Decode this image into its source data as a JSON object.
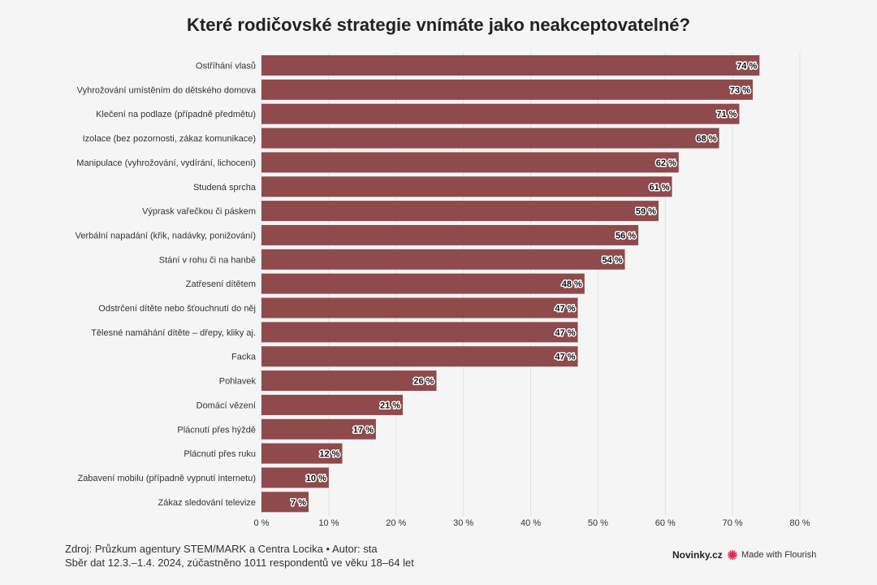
{
  "title": "Které rodičovské strategie vnímáte jako neakceptovatelné?",
  "chart_data": {
    "type": "bar",
    "orientation": "horizontal",
    "categories": [
      "Ostříhání vlasů",
      "Vyhrožování umístěním do dětského domova",
      "Klečení na podlaze (případně předmětu)",
      "Izolace (bez pozornosti, zákaz komunikace)",
      "Manipulace (vyhrožování, vydírání, lichocení)",
      "Studená sprcha",
      "Výprask vařečkou či páskem",
      "Verbální napadání (křik, nadávky, ponižování)",
      "Stání v rohu či na hanbě",
      "Zatřesení dítětem",
      "Odstrčení dítěte nebo šťouchnutí do něj",
      "Tělesné namáhání dítěte – dřepy, kliky aj.",
      "Facka",
      "Pohlavek",
      "Domácí vězení",
      "Plácnutí přes hýždě",
      "Plácnutí přes ruku",
      "Zabavení mobilu (případně vypnutí internetu)",
      "Zákaz sledování televize"
    ],
    "values": [
      74,
      73,
      71,
      68,
      62,
      61,
      59,
      56,
      54,
      48,
      47,
      47,
      47,
      26,
      21,
      17,
      12,
      10,
      7
    ],
    "value_suffix": " %",
    "xlim": [
      0,
      80
    ],
    "xticks": [
      0,
      10,
      20,
      30,
      40,
      50,
      60,
      70,
      80
    ],
    "xtick_labels": [
      "0 %",
      "10 %",
      "20 %",
      "30 %",
      "40 %",
      "50 %",
      "60 %",
      "70 %",
      "80 %"
    ],
    "grid": "vertical",
    "bar_color": "#8f4a4c"
  },
  "footer": {
    "source": "Zdroj: Průzkum agentury STEM/MARK a Centra Locika • Autor: sta",
    "note": "Sběr dat 12.3.–1.4. 2024, zúčastněno 1011 respondentů ve věku 18–64 let"
  },
  "brand": "Novinky.cz",
  "flourish": "Made with Flourish",
  "colors": {
    "flourish_accent": "#e0284f"
  }
}
